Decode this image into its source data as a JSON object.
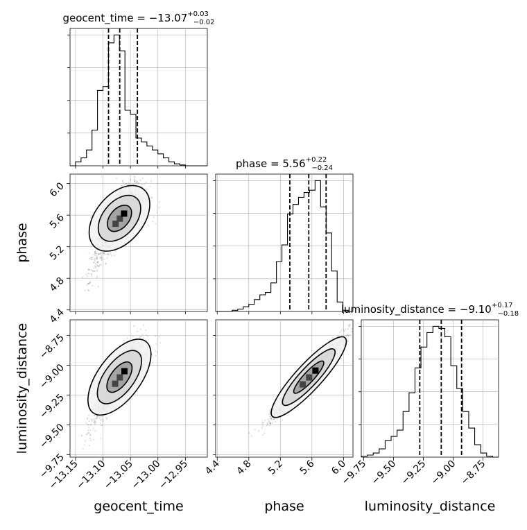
{
  "chart_data": {
    "type": "corner",
    "parameters": [
      "geocent_time",
      "phase",
      "luminosity_distance"
    ],
    "titles": {
      "geocent_time": {
        "prefix": "geocent_time = ",
        "median": "−13.07",
        "plus": "+0.03",
        "minus": "−0.02"
      },
      "phase": {
        "prefix": "phase = ",
        "median": "5.56",
        "plus": "+0.22",
        "minus": "−0.24"
      },
      "luminosity_distance": {
        "prefix": "luminosity_distance = ",
        "median": "−9.10",
        "plus": "+0.17",
        "minus": "−0.18"
      }
    },
    "axis_labels": {
      "geocent_time": "geocent_time",
      "phase": "phase",
      "luminosity_distance": "luminosity_distance"
    },
    "ranges": {
      "geocent_time": [
        -13.16,
        -12.91
      ],
      "phase": [
        4.38,
        6.12
      ],
      "luminosity_distance": [
        -9.77,
        -8.62
      ]
    },
    "ticks": {
      "geocent_time": {
        "values": [
          -13.15,
          -13.1,
          -13.05,
          -13.0,
          -12.95
        ],
        "labels": [
          "−13.15",
          "−13.10",
          "−13.05",
          "−13.00",
          "−12.95"
        ]
      },
      "phase": {
        "values": [
          4.4,
          4.8,
          5.2,
          5.6,
          6.0
        ],
        "labels": [
          "4.4",
          "4.8",
          "5.2",
          "5.6",
          "6.0"
        ]
      },
      "luminosity_distance": {
        "values": [
          -9.75,
          -9.5,
          -9.25,
          -9.0,
          -8.75
        ],
        "labels": [
          "−9.75",
          "−9.50",
          "−9.25",
          "−9.00",
          "−8.75"
        ]
      }
    },
    "quantiles": {
      "geocent_time": [
        -13.0899,
        -13.0695,
        -13.0373
      ],
      "phase": [
        5.32,
        5.56,
        5.78
      ],
      "luminosity_distance": [
        -9.28,
        -9.1,
        -8.93
      ]
    },
    "histograms": {
      "geocent_time": {
        "edges": [
          -13.16,
          -13.15,
          -13.14,
          -13.13,
          -13.12,
          -13.11,
          -13.1,
          -13.09,
          -13.08,
          -13.07,
          -13.06,
          -13.05,
          -13.04,
          -13.03,
          -13.02,
          -13.01,
          -13.0,
          -12.99,
          -12.98,
          -12.97,
          -12.96,
          -12.95,
          -12.94,
          -12.93,
          -12.92,
          -12.91
        ],
        "counts": [
          0,
          1,
          2,
          4,
          9,
          19,
          20,
          31,
          33,
          29,
          14,
          13,
          7,
          6,
          5,
          4,
          3,
          2,
          1,
          0.5,
          0.2,
          0,
          0,
          0,
          0
        ]
      },
      "phase": {
        "edges": [
          4.38,
          4.45,
          4.52,
          4.59,
          4.66,
          4.73,
          4.8,
          4.87,
          4.94,
          5.01,
          5.08,
          5.15,
          5.22,
          5.29,
          5.36,
          5.43,
          5.5,
          5.57,
          5.64,
          5.71,
          5.78,
          5.85,
          5.92,
          5.99,
          6.06,
          6.12
        ],
        "counts": [
          0,
          0,
          0,
          0.5,
          1,
          2,
          3,
          5,
          7,
          8,
          12,
          21,
          28,
          41,
          45,
          48,
          50,
          51,
          55,
          44,
          33,
          17,
          4,
          0.5,
          0
        ]
      },
      "luminosity_distance": {
        "edges": [
          -9.77,
          -9.72,
          -9.67,
          -9.62,
          -9.57,
          -9.52,
          -9.47,
          -9.42,
          -9.37,
          -9.32,
          -9.27,
          -9.22,
          -9.17,
          -9.12,
          -9.07,
          -9.02,
          -8.97,
          -8.92,
          -8.87,
          -8.82,
          -8.77,
          -8.72,
          -8.67,
          -8.62
        ],
        "counts": [
          0.5,
          1,
          2,
          4,
          8,
          10,
          13,
          22,
          31,
          43,
          53,
          60,
          63,
          62,
          58,
          44,
          33,
          22,
          14,
          6,
          2,
          0.5,
          0
        ]
      }
    },
    "grid": true
  }
}
